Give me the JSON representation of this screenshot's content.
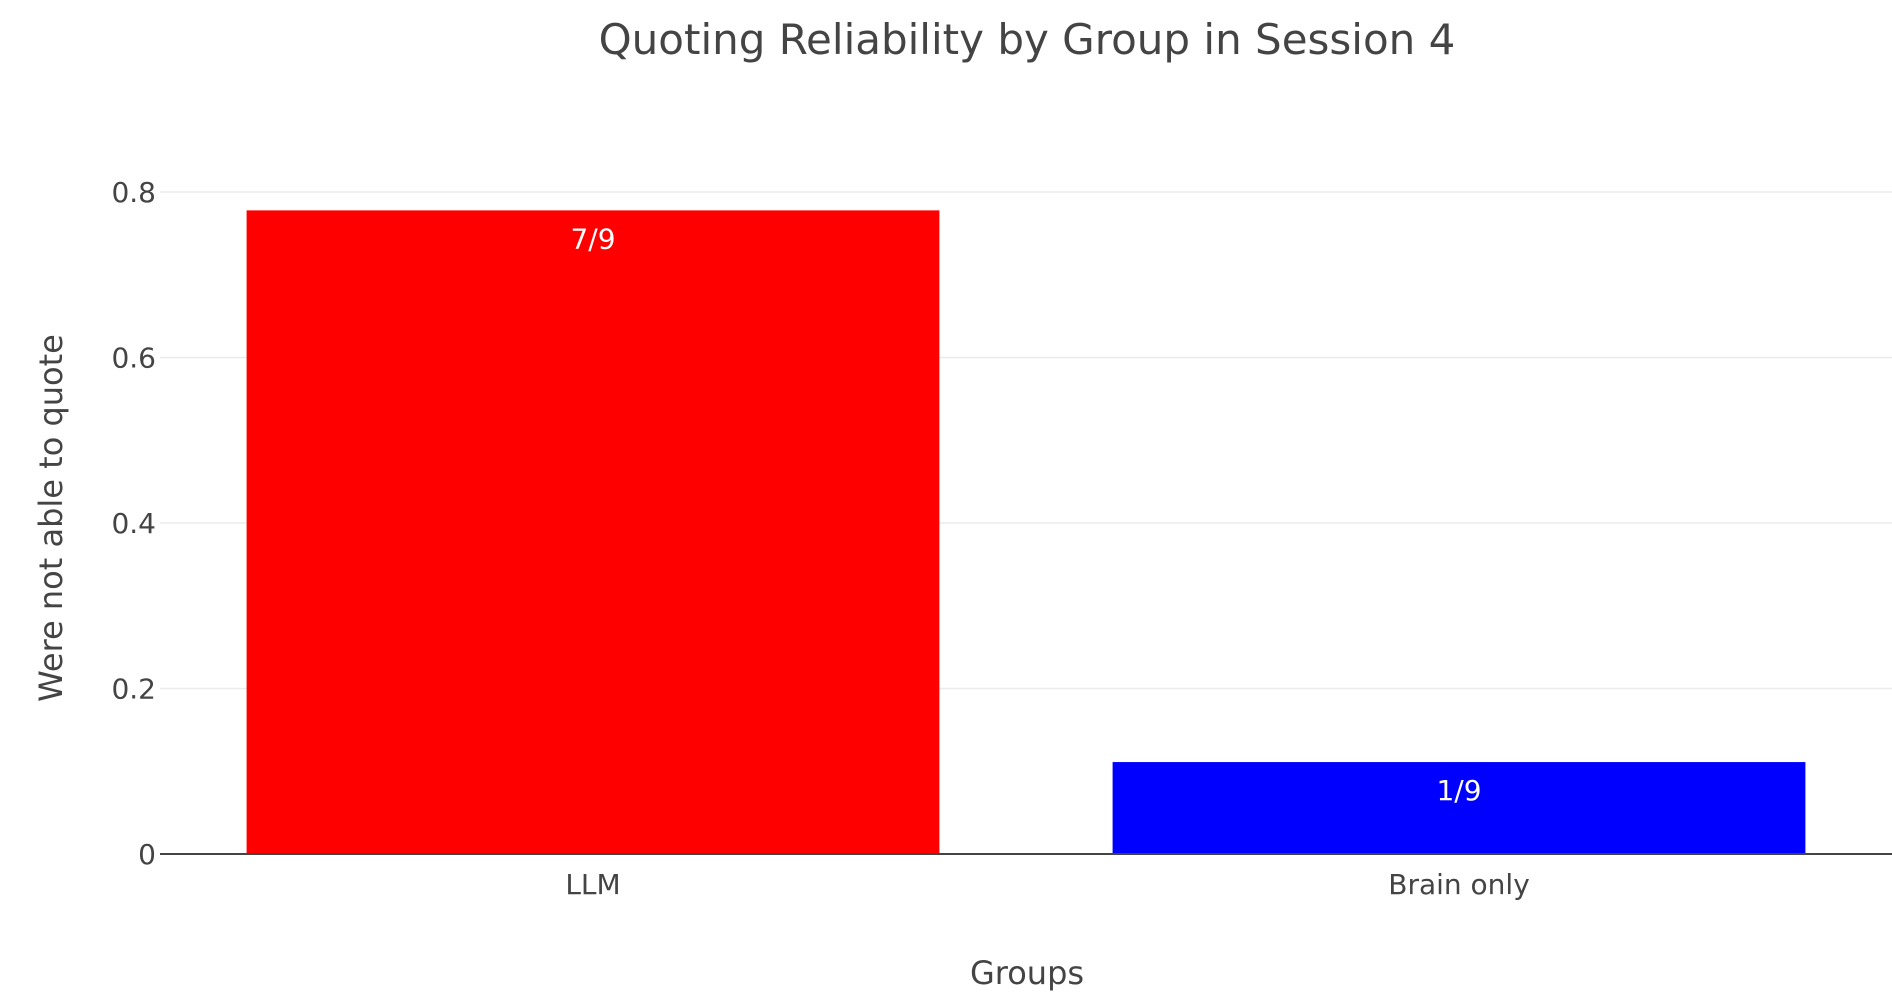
{
  "chart_data": {
    "type": "bar",
    "title": "Quoting Reliability by Group in Session 4",
    "xlabel": "Groups",
    "ylabel": "Were not able to quote",
    "categories": [
      "LLM",
      "Brain only"
    ],
    "values": [
      0.7778,
      0.1111
    ],
    "data_labels": [
      "7/9",
      "1/9"
    ],
    "colors": [
      "#ff0000",
      "#0000ff"
    ],
    "ylim": [
      0,
      0.82
    ],
    "yticks": [
      0,
      0.2,
      0.4,
      0.6,
      0.8
    ],
    "ytick_labels": [
      "0",
      "0.2",
      "0.4",
      "0.6",
      "0.8"
    ],
    "grid": true,
    "legend": "none"
  }
}
